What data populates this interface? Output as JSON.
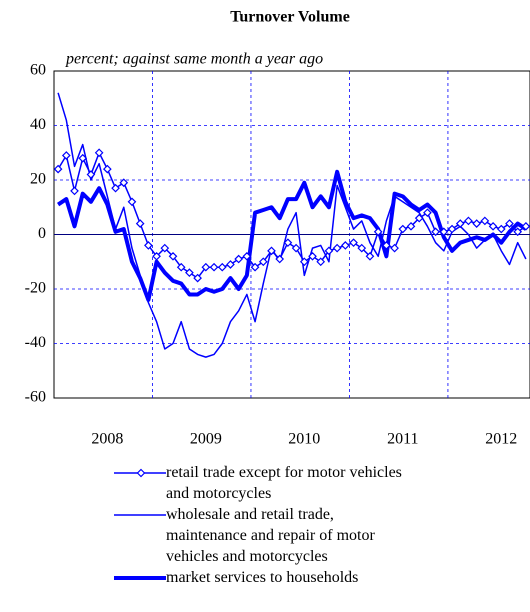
{
  "chart_data": {
    "type": "line",
    "title": "Turnover Volume",
    "subtitle": "percent; against same month a year ago",
    "categories": [
      null,
      null,
      null,
      null,
      null,
      null,
      "2008",
      null,
      null,
      null,
      null,
      null,
      null,
      null,
      null,
      null,
      null,
      null,
      "2009",
      null,
      null,
      null,
      null,
      null,
      null,
      null,
      null,
      null,
      null,
      null,
      "2010",
      null,
      null,
      null,
      null,
      null,
      null,
      null,
      null,
      null,
      null,
      null,
      "2011",
      null,
      null,
      null,
      null,
      null,
      null,
      null,
      null,
      null,
      null,
      null,
      "2012",
      null,
      null,
      null
    ],
    "series": [
      {
        "name": "retail trade except for motor vehicles and motorcycles",
        "color": "#0000ff",
        "marker": "diamond",
        "width": 1.5,
        "values": [
          24,
          29,
          16,
          28,
          22,
          30,
          24,
          17,
          19,
          12,
          4,
          -4,
          -8,
          -5,
          -8,
          -12,
          -14,
          -16,
          -12,
          -12,
          -12,
          -11,
          -9,
          -8,
          -12,
          -10,
          -6,
          -9,
          -3,
          -5,
          -10,
          -8,
          -10,
          -6,
          -5,
          -4,
          -3,
          -5,
          -8,
          1,
          -4,
          -5,
          2,
          3,
          6,
          8,
          1,
          1,
          2,
          4,
          5,
          4,
          5,
          3,
          2,
          4,
          1,
          3
        ]
      },
      {
        "name": "wholesale and retail trade, maintenance and repair of motor vehicles and motorcycles",
        "color": "#0000ff",
        "width": 1.5,
        "values": [
          52,
          42,
          25,
          33,
          20,
          26,
          14,
          2,
          10,
          -5,
          -15,
          -25,
          -32,
          -42,
          -40,
          -32,
          -42,
          -44,
          -45,
          -44,
          -40,
          -32,
          -28,
          -22,
          -32,
          -18,
          -5,
          -10,
          2,
          8,
          -15,
          -5,
          -4,
          -10,
          18,
          10,
          2,
          5,
          -3,
          -8,
          5,
          14,
          12,
          10,
          8,
          3,
          -3,
          -6,
          1,
          3,
          0,
          -5,
          -2,
          0,
          -6,
          -11,
          -3,
          -9
        ]
      },
      {
        "name": "market services to households",
        "color": "#0000ff",
        "width": 4,
        "values": [
          11,
          13,
          3,
          15,
          12,
          17,
          11,
          1,
          2,
          -10,
          -16,
          -24,
          -10,
          -14,
          -17,
          -18,
          -22,
          -22,
          -20,
          -21,
          -20,
          -16,
          -20,
          -15,
          8,
          9,
          10,
          6,
          13,
          13,
          19,
          10,
          14,
          10,
          23,
          12,
          6,
          7,
          6,
          2,
          -8,
          15,
          14,
          11,
          9,
          11,
          8,
          -1,
          -6,
          -3,
          -2,
          -1,
          -2,
          0,
          -3,
          1,
          4,
          2
        ]
      }
    ],
    "ylim": [
      -60,
      60
    ],
    "yticks": [
      -60,
      -40,
      -20,
      0,
      20,
      40,
      60
    ],
    "grid": true
  }
}
